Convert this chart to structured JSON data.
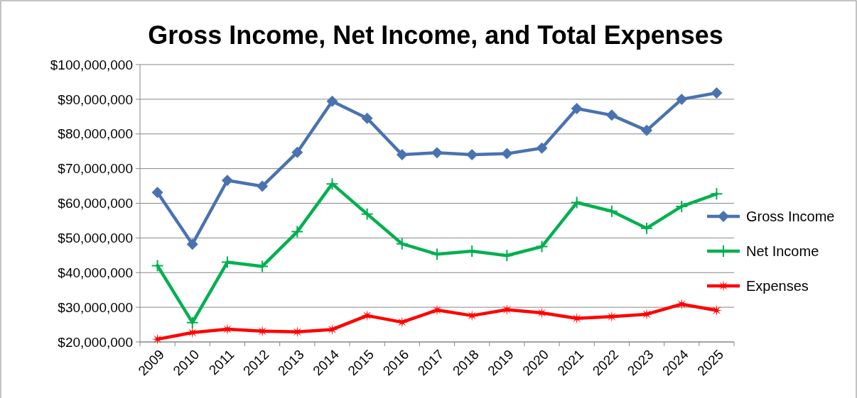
{
  "chart_data": {
    "type": "line",
    "title": "Gross Income, Net Income, and Total Expenses",
    "categories": [
      "2009",
      "2010",
      "2011",
      "2012",
      "2013",
      "2014",
      "2015",
      "2016",
      "2017",
      "2018",
      "2019",
      "2020",
      "2021",
      "2022",
      "2023",
      "2024",
      "2025"
    ],
    "series": [
      {
        "name": "Gross Income",
        "color": "#4a72b0",
        "marker": "diamond",
        "values": [
          63100000,
          48200000,
          66600000,
          64900000,
          74700000,
          89400000,
          84500000,
          74000000,
          74600000,
          74000000,
          74300000,
          75900000,
          87300000,
          85400000,
          81000000,
          90000000,
          91800000
        ]
      },
      {
        "name": "Net Income",
        "color": "#00b050",
        "marker": "cross",
        "values": [
          42000000,
          25600000,
          43000000,
          41800000,
          51800000,
          65600000,
          56900000,
          48300000,
          45300000,
          46200000,
          44900000,
          47500000,
          60200000,
          57700000,
          52800000,
          59100000,
          62700000
        ]
      },
      {
        "name": "Expenses",
        "color": "#ff0000",
        "marker": "star",
        "values": [
          20800000,
          22700000,
          23700000,
          23100000,
          22900000,
          23600000,
          27600000,
          25700000,
          29200000,
          27600000,
          29300000,
          28400000,
          26800000,
          27300000,
          28000000,
          30900000,
          29100000
        ]
      }
    ],
    "ylim": [
      20000000,
      100000000
    ],
    "yticks": [
      {
        "value": 20000000,
        "label": "$20,000,000"
      },
      {
        "value": 30000000,
        "label": "$30,000,000"
      },
      {
        "value": 40000000,
        "label": "$40,000,000"
      },
      {
        "value": 50000000,
        "label": "$50,000,000"
      },
      {
        "value": 60000000,
        "label": "$60,000,000"
      },
      {
        "value": 70000000,
        "label": "$70,000,000"
      },
      {
        "value": 80000000,
        "label": "$80,000,000"
      },
      {
        "value": 90000000,
        "label": "$90,000,000"
      },
      {
        "value": 100000000,
        "label": "$100,000,000"
      }
    ],
    "grid": "y",
    "legend": "right",
    "line_style": "solid"
  }
}
